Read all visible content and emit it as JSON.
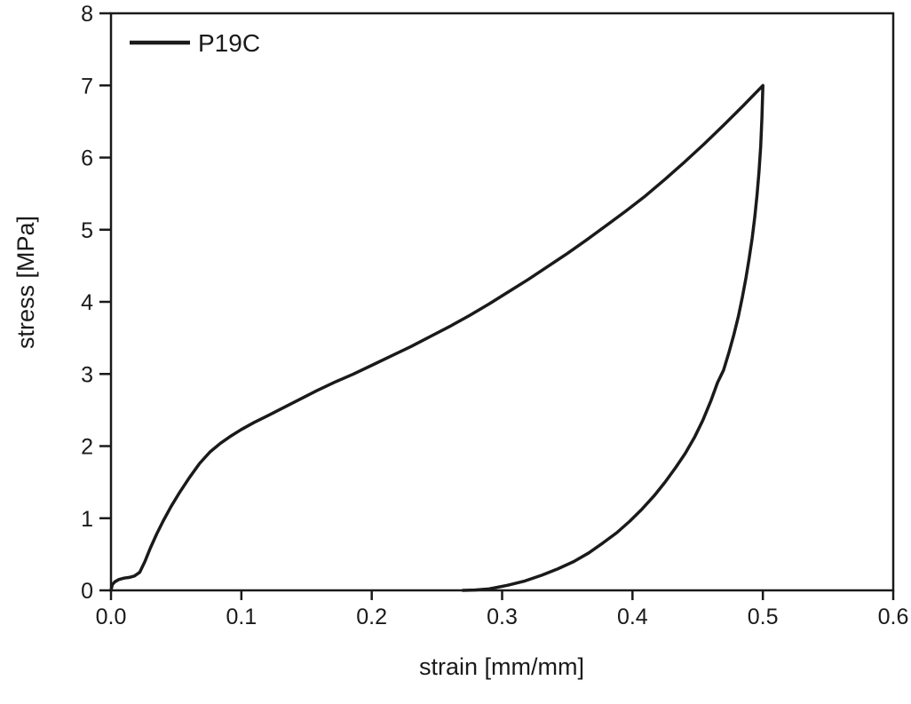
{
  "figure": {
    "background": "#ffffff",
    "foreground": "#1a1a1a"
  },
  "legend": {
    "label": "P19C",
    "position": "top-left",
    "has_border": false
  },
  "chart_data": {
    "type": "line",
    "title": "",
    "xlabel": "strain [mm/mm]",
    "ylabel": "stress [MPa]",
    "xlim": [
      0.0,
      0.6
    ],
    "ylim": [
      0,
      8
    ],
    "grid": false,
    "xtick_labels": [
      "0.0",
      "0.1",
      "0.2",
      "0.3",
      "0.4",
      "0.5",
      "0.6"
    ],
    "ytick_labels": [
      "0",
      "1",
      "2",
      "3",
      "4",
      "5",
      "6",
      "7",
      "8"
    ],
    "legend_position": "top-left",
    "series": [
      {
        "name": "P19C",
        "color": "#1a1a1a",
        "description": "loading-unloading hysteresis loop: loading branch from origin to peak (0.5, 7.0), unloading branch returning to zero stress at strain 0.27",
        "points": [
          [
            0.0,
            0.0
          ],
          [
            0.001,
            0.08
          ],
          [
            0.003,
            0.12
          ],
          [
            0.006,
            0.15
          ],
          [
            0.01,
            0.17
          ],
          [
            0.014,
            0.18
          ],
          [
            0.018,
            0.2
          ],
          [
            0.022,
            0.25
          ],
          [
            0.026,
            0.4
          ],
          [
            0.03,
            0.58
          ],
          [
            0.035,
            0.78
          ],
          [
            0.04,
            0.96
          ],
          [
            0.046,
            1.16
          ],
          [
            0.052,
            1.34
          ],
          [
            0.06,
            1.56
          ],
          [
            0.068,
            1.76
          ],
          [
            0.076,
            1.92
          ],
          [
            0.084,
            2.04
          ],
          [
            0.092,
            2.14
          ],
          [
            0.1,
            2.23
          ],
          [
            0.11,
            2.33
          ],
          [
            0.12,
            2.42
          ],
          [
            0.132,
            2.53
          ],
          [
            0.145,
            2.65
          ],
          [
            0.158,
            2.77
          ],
          [
            0.172,
            2.89
          ],
          [
            0.186,
            3.0
          ],
          [
            0.2,
            3.12
          ],
          [
            0.215,
            3.25
          ],
          [
            0.23,
            3.38
          ],
          [
            0.245,
            3.52
          ],
          [
            0.26,
            3.66
          ],
          [
            0.275,
            3.81
          ],
          [
            0.29,
            3.97
          ],
          [
            0.305,
            4.14
          ],
          [
            0.32,
            4.31
          ],
          [
            0.335,
            4.49
          ],
          [
            0.35,
            4.67
          ],
          [
            0.365,
            4.86
          ],
          [
            0.38,
            5.06
          ],
          [
            0.395,
            5.26
          ],
          [
            0.41,
            5.47
          ],
          [
            0.425,
            5.7
          ],
          [
            0.44,
            5.94
          ],
          [
            0.455,
            6.19
          ],
          [
            0.47,
            6.45
          ],
          [
            0.485,
            6.72
          ],
          [
            0.5,
            7.0
          ],
          [
            0.4993,
            6.55
          ],
          [
            0.4983,
            6.15
          ],
          [
            0.497,
            5.8
          ],
          [
            0.4955,
            5.48
          ],
          [
            0.4938,
            5.18
          ],
          [
            0.4918,
            4.88
          ],
          [
            0.4895,
            4.6
          ],
          [
            0.487,
            4.33
          ],
          [
            0.4842,
            4.06
          ],
          [
            0.4812,
            3.8
          ],
          [
            0.4778,
            3.55
          ],
          [
            0.474,
            3.3
          ],
          [
            0.4698,
            3.05
          ],
          [
            0.4652,
            2.88
          ],
          [
            0.46,
            2.62
          ],
          [
            0.454,
            2.36
          ],
          [
            0.4475,
            2.12
          ],
          [
            0.4405,
            1.9
          ],
          [
            0.433,
            1.7
          ],
          [
            0.425,
            1.5
          ],
          [
            0.4165,
            1.31
          ],
          [
            0.4075,
            1.13
          ],
          [
            0.398,
            0.96
          ],
          [
            0.388,
            0.8
          ],
          [
            0.3775,
            0.66
          ],
          [
            0.3665,
            0.52
          ],
          [
            0.355,
            0.4
          ],
          [
            0.343,
            0.3
          ],
          [
            0.3305,
            0.21
          ],
          [
            0.3175,
            0.13
          ],
          [
            0.304,
            0.07
          ],
          [
            0.29,
            0.02
          ],
          [
            0.279,
            0.005
          ],
          [
            0.27,
            0.0
          ]
        ]
      }
    ]
  }
}
